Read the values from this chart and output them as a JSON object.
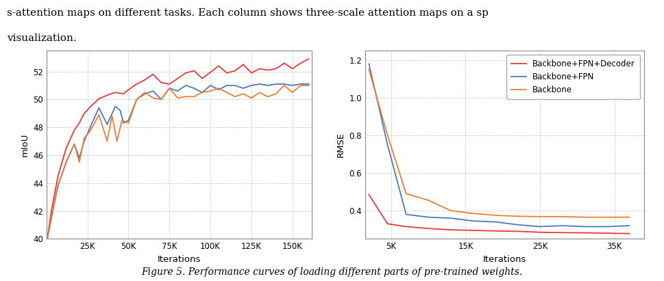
{
  "header_line1": "s-attention maps on different tasks. Each column shows three-scale attention maps on a sp",
  "header_line2": "visualization.",
  "left": {
    "xlabel": "Iterations",
    "ylabel": "mIoU",
    "ylim": [
      40,
      53.5
    ],
    "yticks": [
      40,
      42,
      44,
      46,
      48,
      50,
      52
    ],
    "xticks": [
      25000,
      50000,
      75000,
      100000,
      125000,
      150000
    ],
    "xticklabels": [
      "25K",
      "50K",
      "75K",
      "100K",
      "125K",
      "150K"
    ],
    "series": {
      "red": {
        "color": "#e8373b",
        "x": [
          500,
          3000,
          7000,
          12000,
          17000,
          20000,
          23000,
          27000,
          32000,
          37000,
          42000,
          47000,
          50000,
          55000,
          60000,
          65000,
          70000,
          75000,
          80000,
          85000,
          90000,
          95000,
          100000,
          105000,
          110000,
          115000,
          120000,
          125000,
          130000,
          135000,
          140000,
          145000,
          150000,
          155000,
          160000
        ],
        "y": [
          40.0,
          42.0,
          44.5,
          46.5,
          47.8,
          48.3,
          49.0,
          49.5,
          50.05,
          50.3,
          50.5,
          50.4,
          50.7,
          51.1,
          51.4,
          51.8,
          51.2,
          51.1,
          51.5,
          51.9,
          52.05,
          51.5,
          51.95,
          52.4,
          51.9,
          52.05,
          52.5,
          51.9,
          52.2,
          52.1,
          52.2,
          52.6,
          52.2,
          52.6,
          52.9
        ]
      },
      "blue": {
        "color": "#4c78c0",
        "x": [
          500,
          3000,
          7000,
          12000,
          17000,
          20000,
          23000,
          27000,
          32000,
          37000,
          42000,
          45000,
          47000,
          50000,
          55000,
          60000,
          65000,
          70000,
          75000,
          80000,
          85000,
          90000,
          95000,
          100000,
          105000,
          110000,
          115000,
          120000,
          125000,
          130000,
          135000,
          140000,
          145000,
          150000,
          155000,
          160000
        ],
        "y": [
          40.0,
          41.5,
          43.8,
          45.5,
          46.8,
          45.8,
          47.0,
          48.1,
          49.4,
          48.2,
          49.5,
          49.2,
          48.3,
          48.5,
          50.0,
          50.4,
          50.6,
          50.0,
          50.8,
          50.6,
          51.0,
          50.8,
          50.5,
          51.0,
          50.7,
          51.0,
          51.0,
          50.8,
          51.0,
          51.1,
          51.0,
          51.1,
          51.1,
          51.0,
          51.1,
          51.1
        ]
      },
      "orange": {
        "color": "#ed7d31",
        "x": [
          500,
          3000,
          7000,
          12000,
          17000,
          20000,
          23000,
          27000,
          32000,
          37000,
          40000,
          43000,
          46000,
          50000,
          55000,
          60000,
          65000,
          70000,
          75000,
          80000,
          85000,
          90000,
          95000,
          100000,
          105000,
          110000,
          115000,
          120000,
          125000,
          130000,
          135000,
          140000,
          145000,
          150000,
          155000,
          160000
        ],
        "y": [
          40.0,
          41.5,
          43.8,
          45.5,
          46.8,
          45.5,
          47.2,
          47.8,
          48.9,
          47.0,
          48.8,
          47.0,
          48.5,
          48.3,
          50.0,
          50.5,
          50.1,
          50.0,
          50.8,
          50.1,
          50.2,
          50.2,
          50.5,
          50.6,
          50.8,
          50.5,
          50.2,
          50.4,
          50.1,
          50.5,
          50.2,
          50.4,
          51.0,
          50.5,
          51.0,
          51.0
        ]
      }
    }
  },
  "right": {
    "xlabel": "Iterations",
    "ylabel": "RMSE",
    "ylim": [
      0.25,
      1.25
    ],
    "yticks": [
      0.4,
      0.6,
      0.8,
      1.0,
      1.2
    ],
    "series": {
      "red": {
        "color": "#e8373b",
        "label": "Backbone+FPN+Decoder",
        "x": [
          2000,
          4500,
          7000,
          10000,
          13000,
          16000,
          19000,
          22000,
          25000,
          28000,
          31000,
          34000,
          37000
        ],
        "y": [
          0.485,
          0.33,
          0.315,
          0.305,
          0.298,
          0.295,
          0.292,
          0.29,
          0.285,
          0.283,
          0.282,
          0.28,
          0.278
        ]
      },
      "blue": {
        "color": "#4c78c0",
        "label": "Backbone+FPN",
        "x": [
          2000,
          4500,
          7000,
          10000,
          13000,
          16000,
          19000,
          22000,
          25000,
          28000,
          31000,
          34000,
          37000
        ],
        "y": [
          1.18,
          0.75,
          0.38,
          0.365,
          0.36,
          0.345,
          0.34,
          0.325,
          0.315,
          0.32,
          0.315,
          0.315,
          0.32
        ]
      },
      "orange": {
        "color": "#ed7d31",
        "label": "Backbone",
        "x": [
          2000,
          4500,
          7000,
          10000,
          13000,
          16000,
          19000,
          22000,
          25000,
          28000,
          31000,
          34000,
          37000
        ],
        "y": [
          1.15,
          0.8,
          0.49,
          0.455,
          0.4,
          0.385,
          0.375,
          0.37,
          0.368,
          0.368,
          0.365,
          0.365,
          0.365
        ]
      }
    },
    "legend_labels": [
      "Backbone+FPN+Decoder",
      "Backbone+FPN",
      "Backbone"
    ],
    "legend_colors": [
      "#e8373b",
      "#4c78c0",
      "#ed7d31"
    ]
  },
  "fig_caption": "Figure 5. Performance curves of loading different parts of pre-trained weights.",
  "background_color": "#ffffff",
  "grid_color": "#c8c8c8"
}
